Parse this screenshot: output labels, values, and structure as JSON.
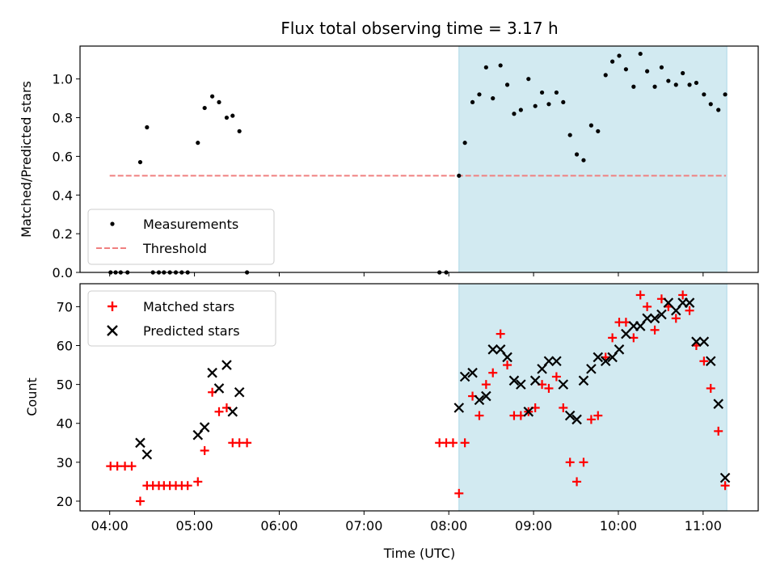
{
  "chart_data": {
    "title": "Flux total observing time = 3.17 h",
    "xlabel": "Time (UTC)",
    "x_unit": "hours (UTC)",
    "xlim": [
      3.65,
      11.65
    ],
    "x_ticks": [
      {
        "value": 4,
        "label": "04:00"
      },
      {
        "value": 5,
        "label": "05:00"
      },
      {
        "value": 6,
        "label": "06:00"
      },
      {
        "value": 7,
        "label": "07:00"
      },
      {
        "value": 8,
        "label": "08:00"
      },
      {
        "value": 9,
        "label": "09:00"
      },
      {
        "value": 10,
        "label": "10:00"
      },
      {
        "value": 11,
        "label": "11:00"
      }
    ],
    "shaded_region": {
      "x_start": 8.12,
      "x_end": 11.28,
      "color": "#add8e6"
    },
    "colors": {
      "threshold": "#f08080",
      "matched": "#ff0000",
      "predicted": "#000000",
      "measurements": "#000000"
    },
    "top": {
      "type": "scatter",
      "ylabel": "Matched/Predicted stars",
      "ylim": [
        0,
        1.17
      ],
      "y_ticks": [
        {
          "value": 0,
          "label": "0.0"
        },
        {
          "value": 0.2,
          "label": "0.2"
        },
        {
          "value": 0.4,
          "label": "0.4"
        },
        {
          "value": 0.6,
          "label": "0.6"
        },
        {
          "value": 0.8,
          "label": "0.8"
        },
        {
          "value": 1.0,
          "label": "1.0"
        }
      ],
      "legend_position": "lower-left",
      "threshold": {
        "name": "Threshold",
        "y": 0.5,
        "x_range": [
          4.0,
          11.27
        ]
      },
      "measurements": {
        "name": "Measurements",
        "points": [
          [
            4.01,
            0
          ],
          [
            4.07,
            0
          ],
          [
            4.13,
            0
          ],
          [
            4.21,
            0
          ],
          [
            4.36,
            0.57
          ],
          [
            4.44,
            0.75
          ],
          [
            4.51,
            0
          ],
          [
            4.58,
            0
          ],
          [
            4.64,
            0
          ],
          [
            4.71,
            0
          ],
          [
            4.78,
            0
          ],
          [
            4.85,
            0
          ],
          [
            4.92,
            0
          ],
          [
            5.04,
            0.67
          ],
          [
            5.12,
            0.85
          ],
          [
            5.21,
            0.91
          ],
          [
            5.29,
            0.88
          ],
          [
            5.38,
            0.8
          ],
          [
            5.45,
            0.81
          ],
          [
            5.53,
            0.73
          ],
          [
            5.62,
            0
          ],
          [
            7.89,
            0
          ],
          [
            7.97,
            0
          ],
          [
            8.12,
            0.5
          ],
          [
            8.19,
            0.67
          ],
          [
            8.28,
            0.88
          ],
          [
            8.36,
            0.92
          ],
          [
            8.44,
            1.06
          ],
          [
            8.52,
            0.9
          ],
          [
            8.61,
            1.07
          ],
          [
            8.69,
            0.97
          ],
          [
            8.77,
            0.82
          ],
          [
            8.85,
            0.84
          ],
          [
            8.94,
            1.0
          ],
          [
            9.02,
            0.86
          ],
          [
            9.1,
            0.93
          ],
          [
            9.18,
            0.87
          ],
          [
            9.27,
            0.93
          ],
          [
            9.35,
            0.88
          ],
          [
            9.43,
            0.71
          ],
          [
            9.51,
            0.61
          ],
          [
            9.59,
            0.58
          ],
          [
            9.68,
            0.76
          ],
          [
            9.76,
            0.73
          ],
          [
            9.85,
            1.02
          ],
          [
            9.93,
            1.09
          ],
          [
            10.01,
            1.12
          ],
          [
            10.09,
            1.05
          ],
          [
            10.18,
            0.96
          ],
          [
            10.26,
            1.13
          ],
          [
            10.34,
            1.04
          ],
          [
            10.43,
            0.96
          ],
          [
            10.51,
            1.06
          ],
          [
            10.59,
            0.99
          ],
          [
            10.68,
            0.97
          ],
          [
            10.76,
            1.03
          ],
          [
            10.84,
            0.97
          ],
          [
            10.92,
            0.98
          ],
          [
            11.01,
            0.92
          ],
          [
            11.09,
            0.87
          ],
          [
            11.18,
            0.84
          ],
          [
            11.26,
            0.92
          ]
        ]
      }
    },
    "bottom": {
      "type": "scatter",
      "ylabel": "Count",
      "ylim": [
        17.5,
        75.9
      ],
      "y_ticks": [
        {
          "value": 20,
          "label": "20"
        },
        {
          "value": 30,
          "label": "30"
        },
        {
          "value": 40,
          "label": "40"
        },
        {
          "value": 50,
          "label": "50"
        },
        {
          "value": 60,
          "label": "60"
        },
        {
          "value": 70,
          "label": "70"
        }
      ],
      "legend_position": "upper-left",
      "series": [
        {
          "name": "Matched stars",
          "marker": "plus",
          "points": [
            [
              4.01,
              29
            ],
            [
              4.09,
              29
            ],
            [
              4.18,
              29
            ],
            [
              4.26,
              29
            ],
            [
              4.36,
              20
            ],
            [
              4.44,
              24
            ],
            [
              4.51,
              24
            ],
            [
              4.58,
              24
            ],
            [
              4.64,
              24
            ],
            [
              4.71,
              24
            ],
            [
              4.78,
              24
            ],
            [
              4.85,
              24
            ],
            [
              4.92,
              24
            ],
            [
              5.04,
              25
            ],
            [
              5.12,
              33
            ],
            [
              5.21,
              48
            ],
            [
              5.29,
              43
            ],
            [
              5.38,
              44
            ],
            [
              5.45,
              35
            ],
            [
              5.53,
              35
            ],
            [
              5.62,
              35
            ],
            [
              7.89,
              35
            ],
            [
              7.97,
              35
            ],
            [
              8.05,
              35
            ],
            [
              8.12,
              22
            ],
            [
              8.19,
              35
            ],
            [
              8.28,
              47
            ],
            [
              8.36,
              42
            ],
            [
              8.44,
              50
            ],
            [
              8.52,
              53
            ],
            [
              8.61,
              63
            ],
            [
              8.69,
              55
            ],
            [
              8.77,
              42
            ],
            [
              8.85,
              42
            ],
            [
              8.94,
              43
            ],
            [
              9.02,
              44
            ],
            [
              9.1,
              50
            ],
            [
              9.18,
              49
            ],
            [
              9.27,
              52
            ],
            [
              9.35,
              44
            ],
            [
              9.43,
              30
            ],
            [
              9.51,
              25
            ],
            [
              9.59,
              30
            ],
            [
              9.68,
              41
            ],
            [
              9.76,
              42
            ],
            [
              9.85,
              57
            ],
            [
              9.93,
              62
            ],
            [
              10.01,
              66
            ],
            [
              10.09,
              66
            ],
            [
              10.18,
              62
            ],
            [
              10.26,
              73
            ],
            [
              10.34,
              70
            ],
            [
              10.43,
              64
            ],
            [
              10.51,
              72
            ],
            [
              10.59,
              70
            ],
            [
              10.68,
              67
            ],
            [
              10.76,
              73
            ],
            [
              10.84,
              69
            ],
            [
              10.92,
              60
            ],
            [
              11.01,
              56
            ],
            [
              11.09,
              49
            ],
            [
              11.18,
              38
            ],
            [
              11.26,
              24
            ]
          ]
        },
        {
          "name": "Predicted stars",
          "marker": "x",
          "points": [
            [
              4.36,
              35
            ],
            [
              4.44,
              32
            ],
            [
              5.04,
              37
            ],
            [
              5.12,
              39
            ],
            [
              5.21,
              53
            ],
            [
              5.29,
              49
            ],
            [
              5.38,
              55
            ],
            [
              5.45,
              43
            ],
            [
              5.53,
              48
            ],
            [
              8.12,
              44
            ],
            [
              8.19,
              52
            ],
            [
              8.28,
              53
            ],
            [
              8.36,
              46
            ],
            [
              8.44,
              47
            ],
            [
              8.52,
              59
            ],
            [
              8.61,
              59
            ],
            [
              8.69,
              57
            ],
            [
              8.77,
              51
            ],
            [
              8.85,
              50
            ],
            [
              8.94,
              43
            ],
            [
              9.02,
              51
            ],
            [
              9.1,
              54
            ],
            [
              9.18,
              56
            ],
            [
              9.27,
              56
            ],
            [
              9.35,
              50
            ],
            [
              9.43,
              42
            ],
            [
              9.51,
              41
            ],
            [
              9.59,
              51
            ],
            [
              9.68,
              54
            ],
            [
              9.76,
              57
            ],
            [
              9.85,
              56
            ],
            [
              9.93,
              57
            ],
            [
              10.01,
              59
            ],
            [
              10.09,
              63
            ],
            [
              10.18,
              65
            ],
            [
              10.26,
              65
            ],
            [
              10.34,
              67
            ],
            [
              10.43,
              67
            ],
            [
              10.51,
              68
            ],
            [
              10.59,
              71
            ],
            [
              10.68,
              69
            ],
            [
              10.76,
              71
            ],
            [
              10.84,
              71
            ],
            [
              10.92,
              61
            ],
            [
              11.01,
              61
            ],
            [
              11.09,
              56
            ],
            [
              11.18,
              45
            ],
            [
              11.26,
              26
            ]
          ]
        }
      ]
    }
  }
}
